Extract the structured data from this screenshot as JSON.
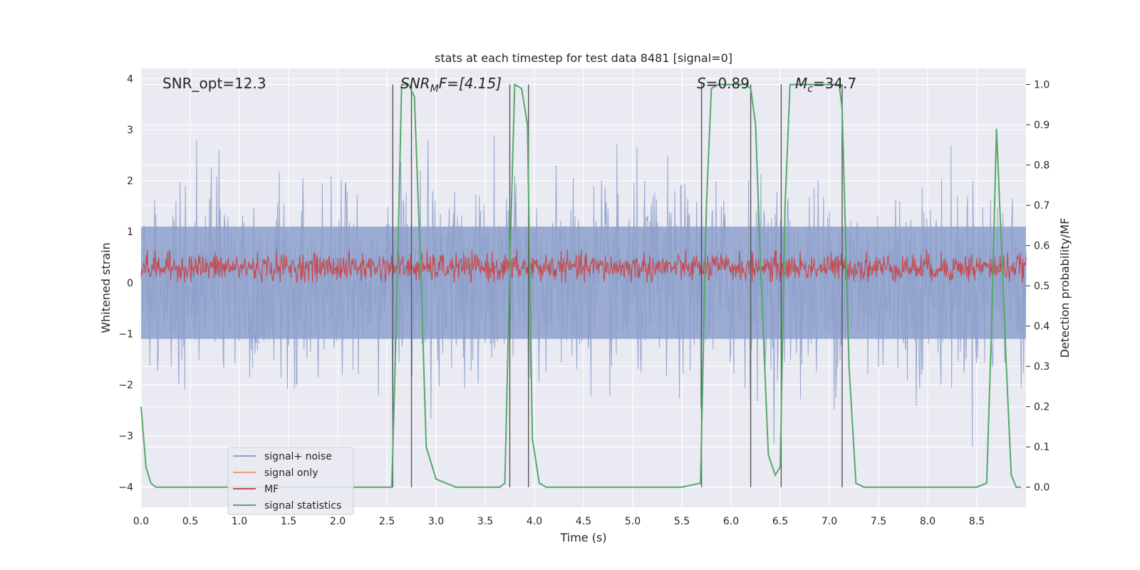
{
  "chart_data": {
    "type": "line",
    "title": "stats at each timestep for test data 8481 [signal=0]",
    "xlabel": "Time (s)",
    "ylabel": "Whitened strain",
    "ylabel_right": "Detection probability/MF",
    "xlim": [
      0,
      9.0
    ],
    "ylim": [
      -4.4,
      4.2
    ],
    "ylim_right": [
      -0.05,
      1.04
    ],
    "x_ticks": [
      "0.0",
      "0.5",
      "1.0",
      "1.5",
      "2.0",
      "2.5",
      "3.0",
      "3.5",
      "4.0",
      "4.5",
      "5.0",
      "5.5",
      "6.0",
      "6.5",
      "7.0",
      "7.5",
      "8.0",
      "8.5"
    ],
    "y_ticks": [
      "−4",
      "−3",
      "−2",
      "−1",
      "0",
      "1",
      "2",
      "3",
      "4"
    ],
    "y_ticks_right": [
      "0.0",
      "0.1",
      "0.2",
      "0.3",
      "0.4",
      "0.5",
      "0.6",
      "0.7",
      "0.8",
      "0.9",
      "1.0"
    ],
    "grid": true,
    "legend_position": "lower-left",
    "annotations": {
      "snr_opt": "SNR_opt=12.3",
      "snr_mf_main": "SNR",
      "snr_mf_sub": "M",
      "snr_mf_tail": "F=[4.15]",
      "s_italic": "S",
      "s_value": "=0.89",
      "mc_main": "M",
      "mc_sub": "c",
      "mc_value": "=34.7"
    },
    "series": [
      {
        "name": "signal+ noise",
        "color": "#8da0cb",
        "description_level": "noise",
        "envelope_pos": 2.0,
        "envelope_neg": -2.0
      },
      {
        "name": "signal only",
        "color": "#e8a07c",
        "values": []
      },
      {
        "name": "MF",
        "color": "#c44e52",
        "mean": 0.3,
        "range": [
          0.0,
          0.65
        ]
      },
      {
        "name": "signal statistics",
        "color": "#55a868",
        "x": [
          0.0,
          0.05,
          0.1,
          0.15,
          0.2,
          0.3,
          0.5,
          1.0,
          1.5,
          2.0,
          2.5,
          2.55,
          2.6,
          2.65,
          2.72,
          2.78,
          2.85,
          2.9,
          3.0,
          3.2,
          3.5,
          3.65,
          3.7,
          3.75,
          3.8,
          3.87,
          3.93,
          3.98,
          4.05,
          4.12,
          4.2,
          4.5,
          5.0,
          5.5,
          5.69,
          5.75,
          5.8,
          5.87,
          6.0,
          6.15,
          6.2,
          6.25,
          6.3,
          6.38,
          6.45,
          6.5,
          6.55,
          6.6,
          6.65,
          6.8,
          7.0,
          7.1,
          7.13,
          7.2,
          7.27,
          7.35,
          7.5,
          8.0,
          8.4,
          8.5,
          8.6,
          8.65,
          8.7,
          8.75,
          8.8,
          8.85,
          8.9,
          8.95
        ],
        "values": [
          0.2,
          0.05,
          0.01,
          0.0,
          0.0,
          0.0,
          0.0,
          0.0,
          0.0,
          0.0,
          0.0,
          0.0,
          0.45,
          1.0,
          1.0,
          0.97,
          0.5,
          0.1,
          0.02,
          0.0,
          0.0,
          0.0,
          0.01,
          0.55,
          1.0,
          0.99,
          0.9,
          0.12,
          0.01,
          0.0,
          0.0,
          0.0,
          0.0,
          0.0,
          0.01,
          0.7,
          0.99,
          1.0,
          1.0,
          1.0,
          0.99,
          0.9,
          0.55,
          0.08,
          0.03,
          0.05,
          0.7,
          1.0,
          1.0,
          1.0,
          1.0,
          1.0,
          0.94,
          0.3,
          0.01,
          0.0,
          0.0,
          0.0,
          0.0,
          0.0,
          0.01,
          0.4,
          0.89,
          0.6,
          0.3,
          0.03,
          0.0,
          0.0
        ]
      }
    ],
    "vertical_lines": [
      2.56,
      2.75,
      3.75,
      3.94,
      5.7,
      6.2,
      6.51,
      7.13
    ]
  }
}
